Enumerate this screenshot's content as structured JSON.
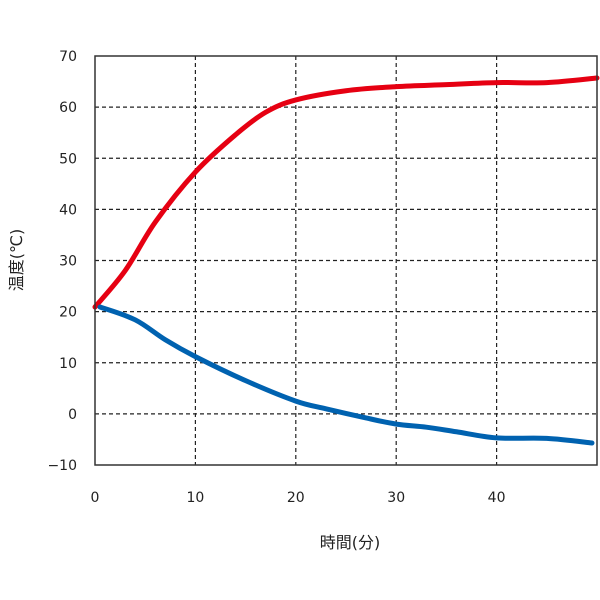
{
  "chart_data": {
    "type": "line",
    "title": "",
    "xlabel": "時間(分)",
    "ylabel": "温度(℃)",
    "xlim": [
      0,
      50
    ],
    "ylim": [
      -10,
      70
    ],
    "xticks": [
      0,
      10,
      20,
      30,
      40
    ],
    "yticks": [
      -10,
      0,
      10,
      20,
      30,
      40,
      50,
      60,
      70
    ],
    "xtick_labels": [
      "0",
      "10",
      "20",
      "30",
      "40"
    ],
    "ytick_labels": [
      "−10",
      "0",
      "10",
      "20",
      "30",
      "40",
      "50",
      "60",
      "70"
    ],
    "grid": true,
    "grid_style": "dashed",
    "series": [
      {
        "color": "#e60012",
        "x": [
          0,
          3,
          6,
          10,
          14,
          17,
          20,
          25,
          30,
          35,
          40,
          45,
          50
        ],
        "y": [
          20.9,
          28,
          37.5,
          47.3,
          54.6,
          59,
          61.4,
          63.2,
          64,
          64.4,
          64.8,
          64.8,
          65.7
        ]
      },
      {
        "color": "#0062b0",
        "x": [
          0.5,
          4,
          7,
          10,
          15,
          20,
          23,
          27,
          30,
          33,
          36,
          40,
          45,
          49.5
        ],
        "y": [
          20.9,
          18.4,
          14.5,
          11.2,
          6.5,
          2.5,
          1,
          -0.8,
          -2,
          -2.6,
          -3.5,
          -4.7,
          -4.8,
          -5.7
        ]
      }
    ]
  }
}
